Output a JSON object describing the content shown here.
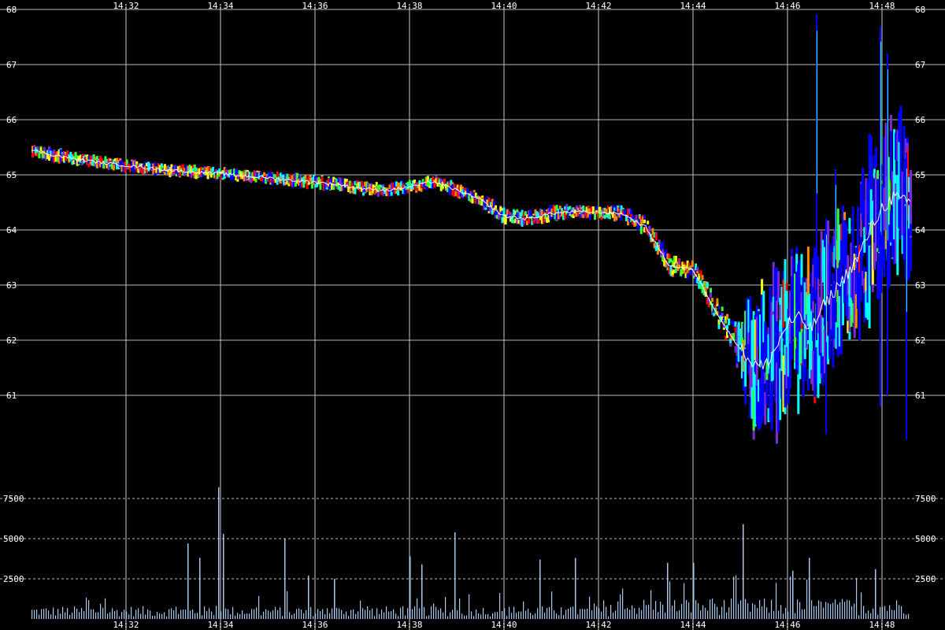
{
  "chart_data": [
    {
      "type": "line",
      "panel": "price",
      "title": "",
      "xlabel": "",
      "ylabel": "",
      "x_ticks": [
        "14:32",
        "14:34",
        "14:36",
        "14:38",
        "14:40",
        "14:42",
        "14:44",
        "14:46",
        "14:48"
      ],
      "y_ticks": [
        61,
        62,
        63,
        64,
        65,
        66,
        67,
        68
      ],
      "ylim": [
        59.75,
        68
      ],
      "xlim_minutes": [
        0,
        18.6
      ],
      "grid": true,
      "legend": "none",
      "colors": {
        "band": [
          "#ff0000",
          "#ff8800",
          "#ffff00",
          "#33ff33",
          "#00ffff",
          "#0000ff",
          "#7a2bd6"
        ],
        "trace": "#ffffff",
        "background": "#000000"
      },
      "x_minutes": [
        0.0,
        0.5,
        1.0,
        1.5,
        2.0,
        2.5,
        3.0,
        3.5,
        4.0,
        4.5,
        5.0,
        5.5,
        6.0,
        6.5,
        7.0,
        7.5,
        8.0,
        8.5,
        9.0,
        9.5,
        10.0,
        10.5,
        11.0,
        11.5,
        12.0,
        12.5,
        13.0,
        13.5,
        14.0,
        14.25,
        14.5,
        14.75,
        15.0,
        15.25,
        15.5,
        15.75,
        16.0,
        16.25,
        16.5,
        16.75,
        17.0,
        17.25,
        17.5,
        17.75,
        18.0,
        18.25,
        18.5
      ],
      "price": [
        65.45,
        65.35,
        65.28,
        65.22,
        65.17,
        65.12,
        65.08,
        65.05,
        65.02,
        64.98,
        64.95,
        64.9,
        64.87,
        64.82,
        64.75,
        64.72,
        64.78,
        64.88,
        64.72,
        64.55,
        64.25,
        64.2,
        64.3,
        64.33,
        64.32,
        64.3,
        64.05,
        63.35,
        63.28,
        62.9,
        62.5,
        62.15,
        61.85,
        61.6,
        61.5,
        61.85,
        62.3,
        62.4,
        62.2,
        62.6,
        62.9,
        63.2,
        63.5,
        64.0,
        64.4,
        64.6,
        64.5
      ],
      "spread": [
        0.12,
        0.12,
        0.1,
        0.1,
        0.1,
        0.1,
        0.1,
        0.1,
        0.1,
        0.1,
        0.1,
        0.12,
        0.12,
        0.12,
        0.12,
        0.1,
        0.12,
        0.12,
        0.12,
        0.15,
        0.15,
        0.15,
        0.15,
        0.12,
        0.12,
        0.15,
        0.2,
        0.2,
        0.2,
        0.25,
        0.3,
        0.35,
        0.5,
        1.3,
        1.4,
        1.5,
        1.6,
        1.5,
        1.5,
        1.4,
        1.3,
        1.2,
        1.5,
        1.8,
        1.5,
        1.5,
        1.4
      ],
      "spikes": [
        {
          "t": 16.6,
          "low": 62.0,
          "high": 67.9
        },
        {
          "t": 17.95,
          "low": 60.8,
          "high": 67.7
        },
        {
          "t": 18.1,
          "low": 61.0,
          "high": 67.2
        },
        {
          "t": 17.0,
          "low": 62.4,
          "high": 65.1
        },
        {
          "t": 18.5,
          "low": 60.2,
          "high": 65.4
        },
        {
          "t": 16.8,
          "low": 60.3,
          "high": 64.2
        }
      ]
    },
    {
      "type": "bar",
      "panel": "volume",
      "title": "",
      "xlabel": "",
      "ylabel": "",
      "y_ticks": [
        2500,
        5000,
        7500
      ],
      "ylim": [
        0,
        8500
      ],
      "grid": true,
      "legend": "none",
      "colors": {
        "bar": "#a9c8ee"
      },
      "peaks": [
        {
          "t": 3.3,
          "v": 4700
        },
        {
          "t": 3.55,
          "v": 3800
        },
        {
          "t": 3.95,
          "v": 8200
        },
        {
          "t": 4.05,
          "v": 5300
        },
        {
          "t": 5.35,
          "v": 5000
        },
        {
          "t": 5.85,
          "v": 2700
        },
        {
          "t": 6.4,
          "v": 2500
        },
        {
          "t": 8.0,
          "v": 3900
        },
        {
          "t": 8.25,
          "v": 3400
        },
        {
          "t": 8.95,
          "v": 5400
        },
        {
          "t": 10.75,
          "v": 3700
        },
        {
          "t": 11.5,
          "v": 3800
        },
        {
          "t": 13.45,
          "v": 3500
        },
        {
          "t": 14.0,
          "v": 3500
        },
        {
          "t": 15.05,
          "v": 5900
        },
        {
          "t": 16.1,
          "v": 3000
        },
        {
          "t": 16.45,
          "v": 3800
        },
        {
          "t": 17.85,
          "v": 3100
        }
      ]
    }
  ]
}
